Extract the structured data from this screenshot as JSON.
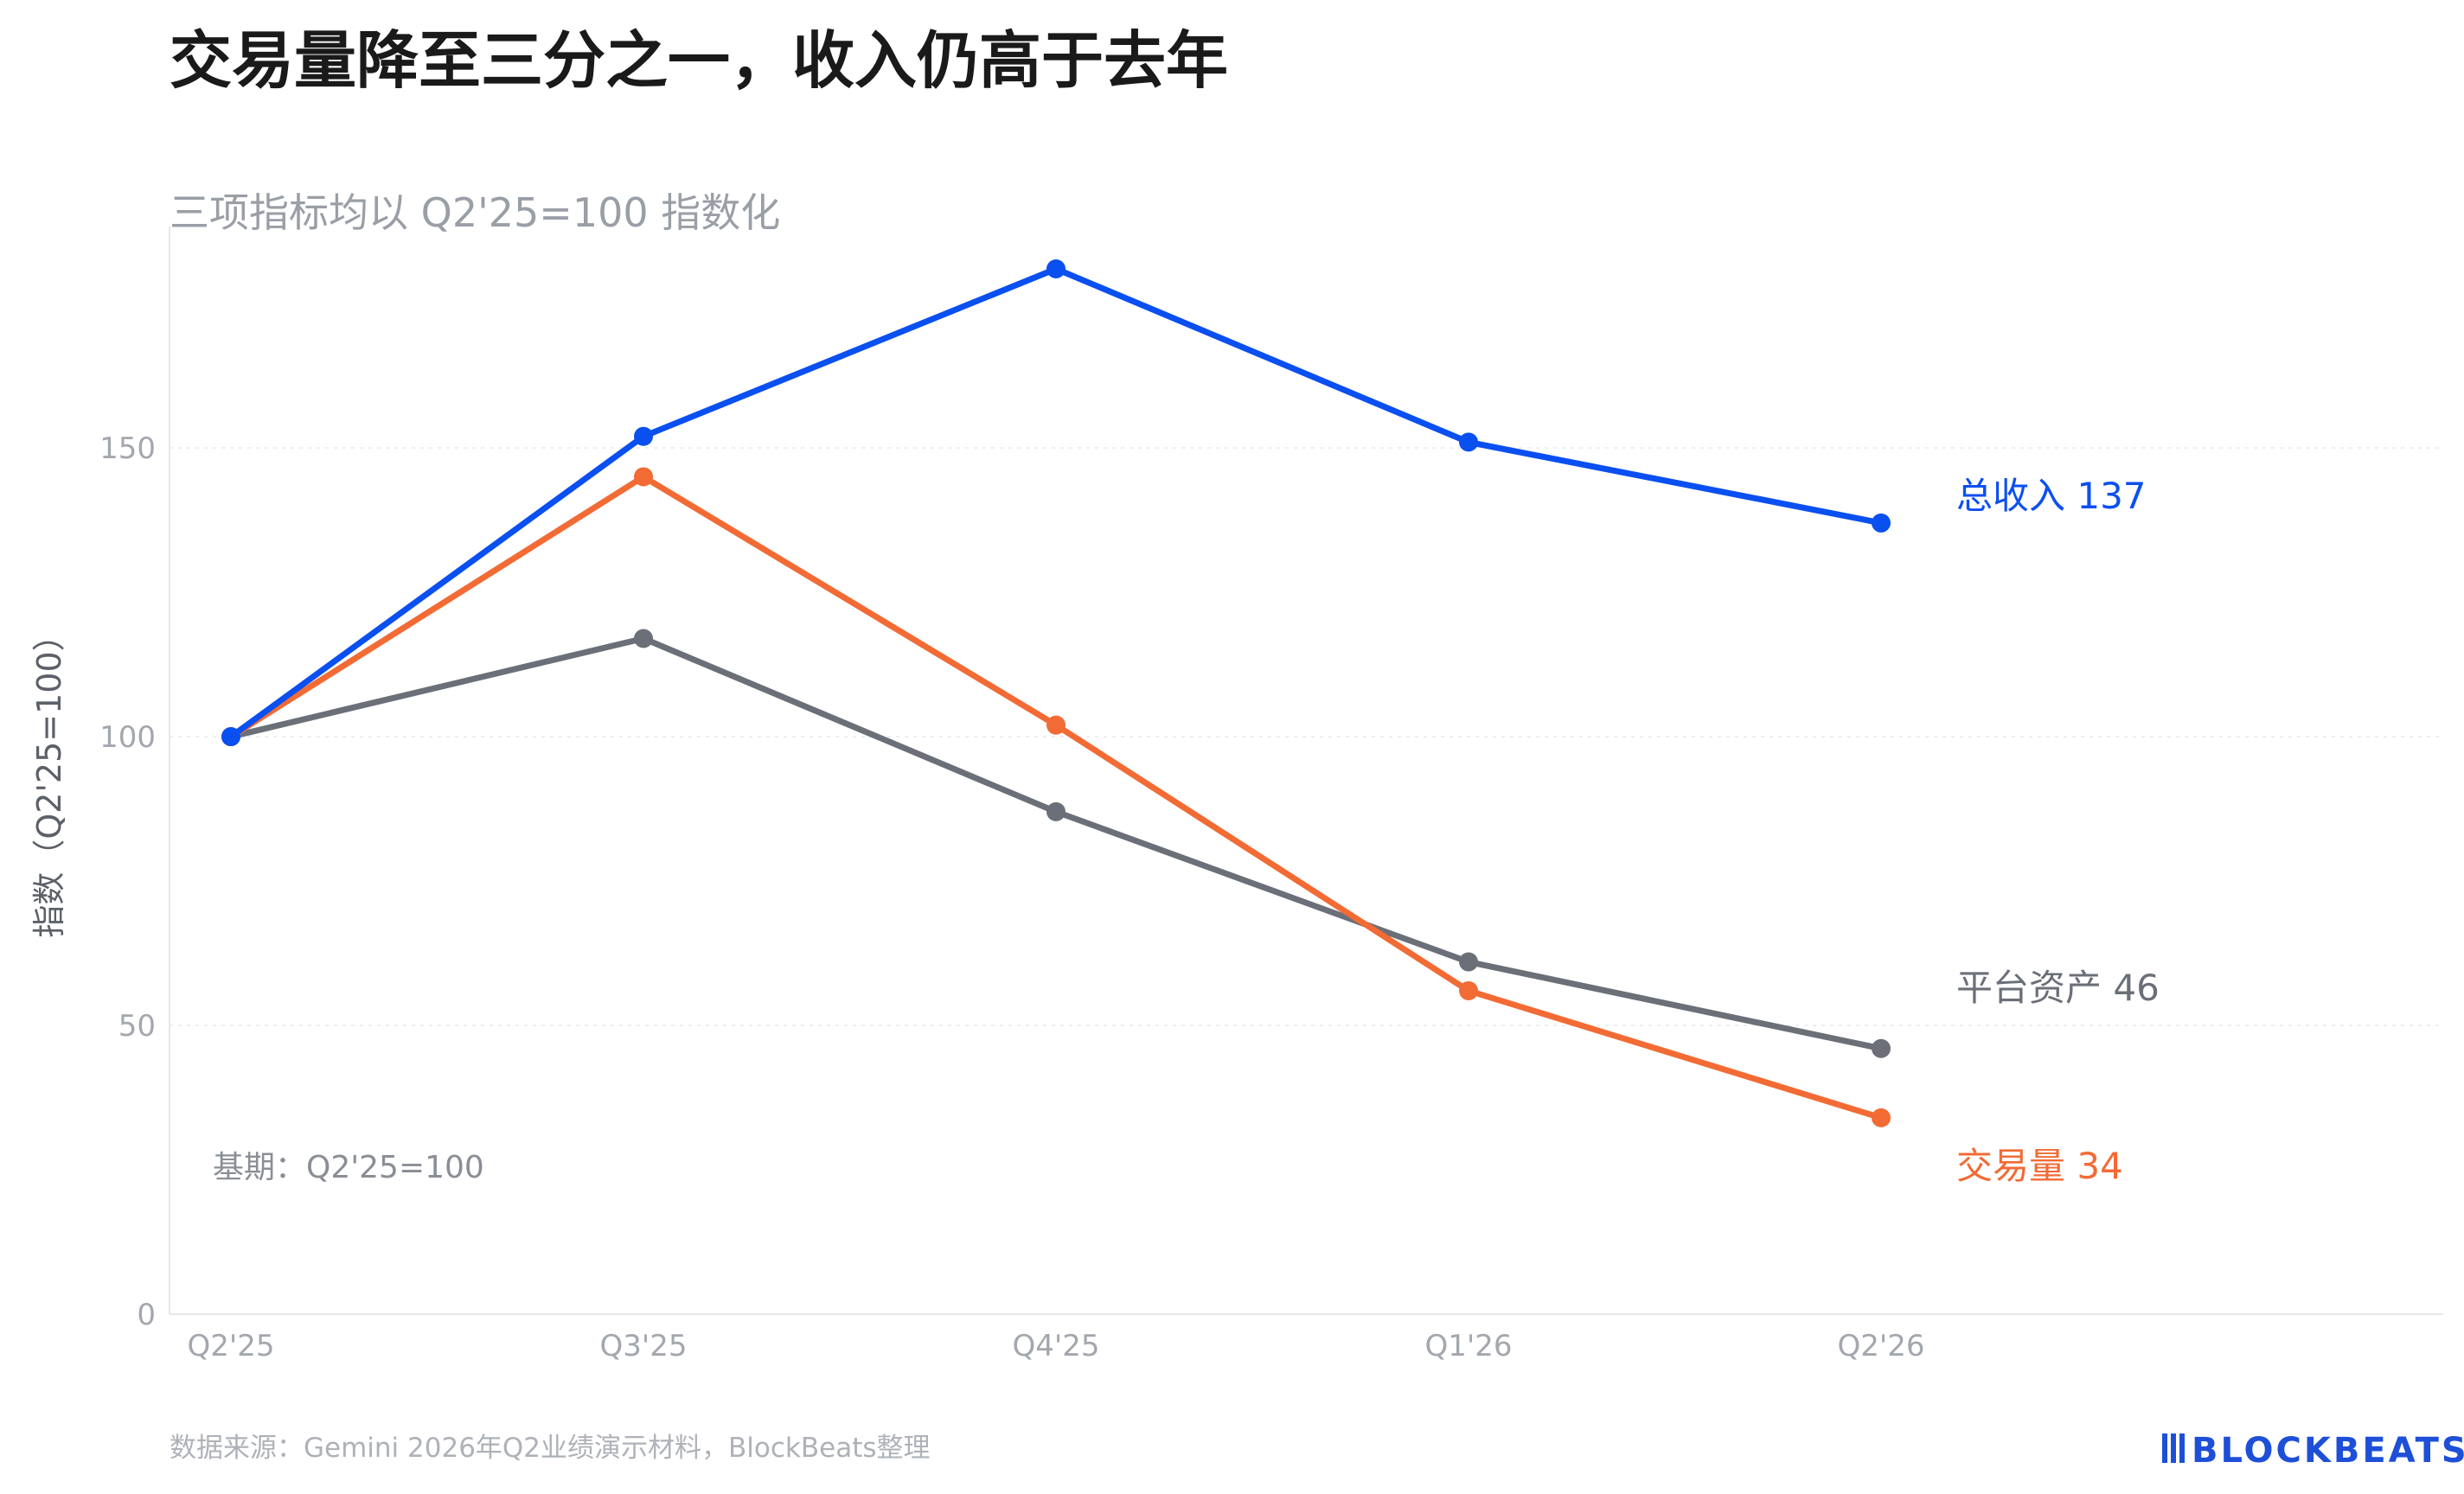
{
  "title": "交易量降至三分之一，收入仍高于去年",
  "subtitle": "三项指标均以 Q2'25=100 指数化",
  "base_note": "基期：Q2'25=100",
  "source": "数据来源：Gemini 2026年Q2业绩演示材料，BlockBeats整理",
  "logo": "BLOCKBEATS",
  "chart_data": {
    "type": "line",
    "title": "交易量降至三分之一，收入仍高于去年",
    "subtitle": "三项指标均以 Q2'25=100 指数化",
    "xlabel": "",
    "ylabel": "指数（Q2'25=100）",
    "categories": [
      "Q2'25",
      "Q3'25",
      "Q4'25",
      "Q1'26",
      "Q2'26"
    ],
    "ylim": [
      0,
      180
    ],
    "yticks": [
      0,
      50,
      100,
      150
    ],
    "grid": true,
    "series": [
      {
        "name": "总收入",
        "values": [
          100,
          152,
          181,
          151,
          137
        ],
        "color": "#0a4ff0",
        "end_label": "总收入 137"
      },
      {
        "name": "平台资产",
        "values": [
          100,
          117,
          87,
          61,
          46
        ],
        "color": "#6b6f78",
        "end_label": "平台资产 46"
      },
      {
        "name": "交易量",
        "values": [
          100,
          145,
          102,
          56,
          34
        ],
        "color": "#f26b35",
        "end_label": "交易量 34"
      }
    ]
  }
}
